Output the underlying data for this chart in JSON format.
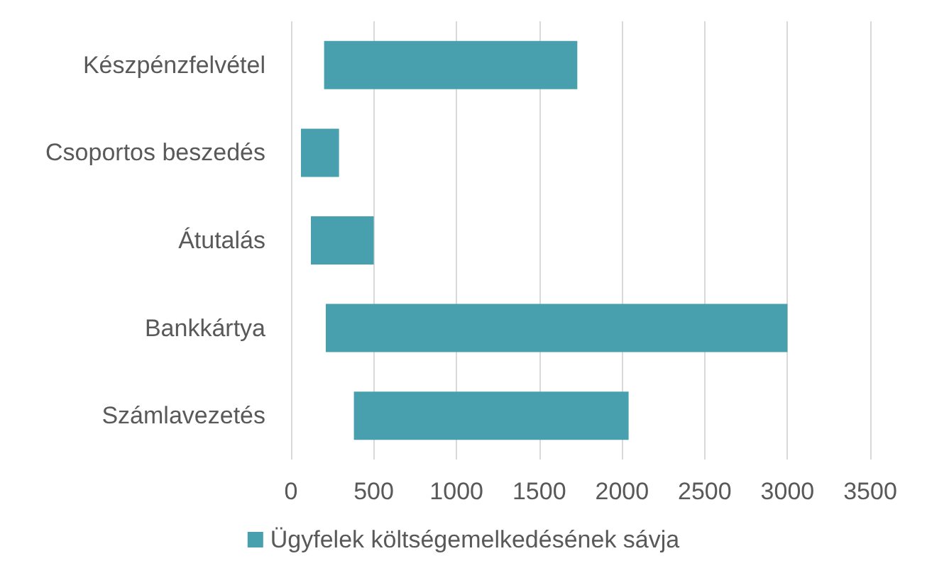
{
  "chart_data": {
    "type": "bar",
    "orientation": "horizontal",
    "categories": [
      "Készpénzfelvétel",
      "Csoportos beszedés",
      "Átutalás",
      "Bankkártya",
      "Számlavezetés"
    ],
    "series": [
      {
        "name": "Ügyfelek költségemelkedésének sávja",
        "color": "#48a0ae",
        "values": [
          1530,
          230,
          380,
          2790,
          1660
        ],
        "base": [
          200,
          60,
          120,
          210,
          380
        ]
      }
    ],
    "xlim": [
      0,
      3500
    ],
    "xticks": [
      0,
      500,
      1000,
      1500,
      2000,
      2500,
      3000,
      3500
    ],
    "grid": "x",
    "legend": "bottom"
  }
}
